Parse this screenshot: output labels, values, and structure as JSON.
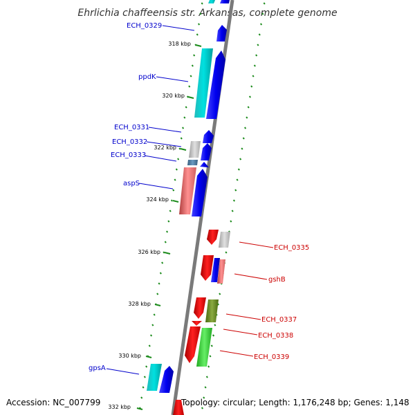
{
  "title": "Ehrlichia chaffeensis str. Arkansas, complete genome",
  "footer": {
    "accession": "Accession: NC_007799",
    "topology": "Topology: circular; Length: 1,176,248 bp; Genes: 1,148"
  },
  "colors": {
    "backbone": "#7a7a7a",
    "ticks": "#1a8a1a",
    "forward_label": "#0000cc",
    "reverse_label": "#cc0000"
  },
  "ticks": [
    {
      "label": "318 kbp"
    },
    {
      "label": "320 kbp"
    },
    {
      "label": "322 kbp"
    },
    {
      "label": "324 kbp"
    },
    {
      "label": "326 kbp"
    },
    {
      "label": "328 kbp"
    },
    {
      "label": "330 kbp"
    },
    {
      "label": "332 kbp"
    }
  ],
  "gene_labels": [
    {
      "name": "ECH_0329",
      "strand": "forward"
    },
    {
      "name": "ppdK",
      "strand": "forward"
    },
    {
      "name": "ECH_0331",
      "strand": "forward"
    },
    {
      "name": "ECH_0332",
      "strand": "forward"
    },
    {
      "name": "ECH_0333",
      "strand": "forward"
    },
    {
      "name": "aspS",
      "strand": "forward"
    },
    {
      "name": "ECH_0335",
      "strand": "reverse"
    },
    {
      "name": "gshB",
      "strand": "reverse"
    },
    {
      "name": "ECH_0337",
      "strand": "reverse"
    },
    {
      "name": "ECH_0338",
      "strand": "reverse"
    },
    {
      "name": "ECH_0339",
      "strand": "reverse"
    },
    {
      "name": "gpsA",
      "strand": "forward"
    }
  ]
}
